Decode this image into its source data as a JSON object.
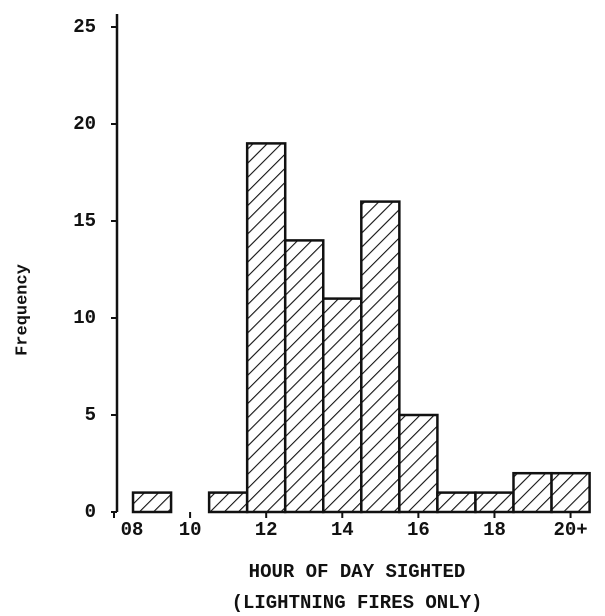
{
  "chart_data": {
    "type": "histogram",
    "bins": [
      8.5,
      9.5,
      10.5,
      11.5,
      12.5,
      13.5,
      14.5,
      15.5,
      16.5,
      17.5,
      18.5,
      19.5,
      20.5
    ],
    "values": [
      1,
      0,
      1,
      19,
      14,
      11,
      16,
      5,
      1,
      1,
      2,
      2
    ],
    "xlabel": [
      "HOUR OF DAY SIGHTED",
      "(LIGHTNING FIRES ONLY)"
    ],
    "ylabel": "Frequency",
    "xlim": [
      8,
      20.8
    ],
    "ylim": [
      0,
      25
    ],
    "xticks": [
      {
        "value": 8,
        "label": "08"
      },
      10,
      12,
      14,
      16,
      18,
      {
        "value": 20,
        "label": "20+"
      }
    ],
    "yticks": [
      0,
      5,
      10,
      15,
      20,
      25
    ],
    "color": "#111111",
    "hatch": true
  }
}
